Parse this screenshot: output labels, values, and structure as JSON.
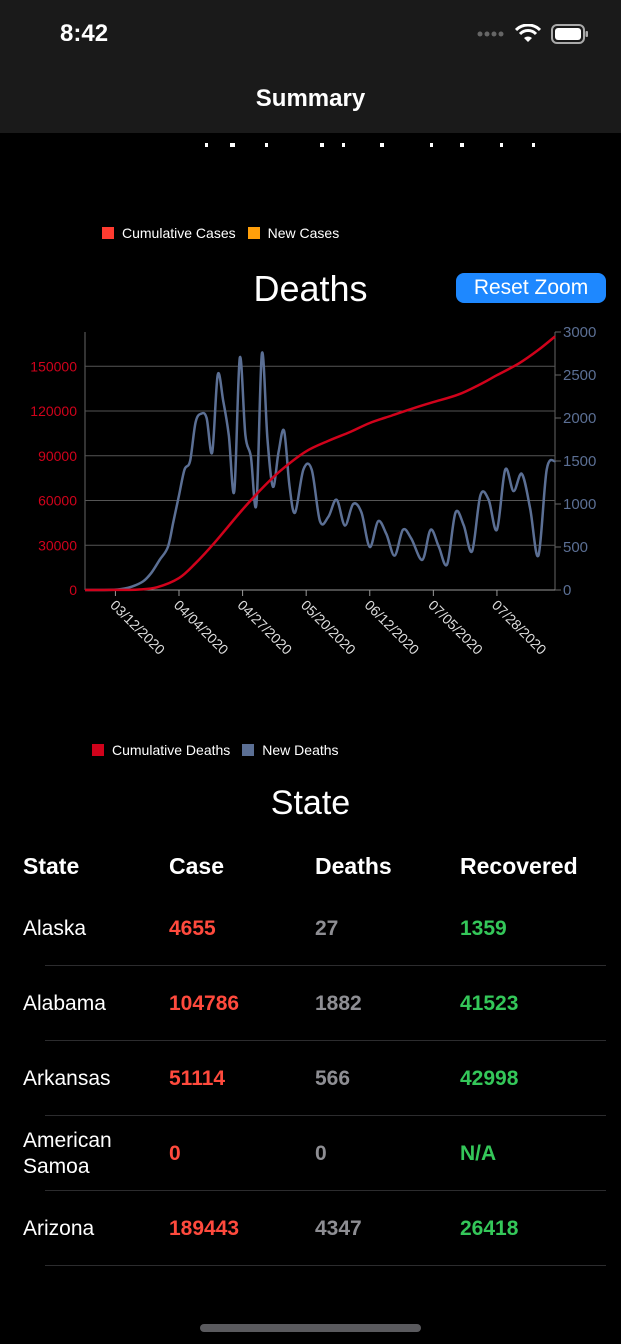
{
  "status_bar": {
    "time": "8:42"
  },
  "nav": {
    "title": "Summary"
  },
  "cases_legend": {
    "items": [
      {
        "label": "Cumulative Cases",
        "color": "#ff3b30"
      },
      {
        "label": "New Cases",
        "color": "#ff9f0a"
      }
    ]
  },
  "deaths_chart": {
    "title": "Deaths",
    "reset_zoom_label": "Reset Zoom",
    "y_left_ticks": [
      "150000",
      "120000",
      "90000",
      "60000",
      "30000",
      "0"
    ],
    "y_right_ticks": [
      "3000",
      "2500",
      "2000",
      "1500",
      "1000",
      "500",
      "0"
    ],
    "x_ticks": [
      "03/12/2020",
      "04/04/2020",
      "04/27/2020",
      "05/20/2020",
      "06/12/2020",
      "07/05/2020",
      "07/28/2020"
    ],
    "legend": [
      {
        "label": "Cumulative Deaths",
        "color": "#d0021b"
      },
      {
        "label": "New Deaths",
        "color": "#5b6f94"
      }
    ]
  },
  "chart_data": {
    "type": "line",
    "title": "Deaths",
    "x_range": [
      "03/01/2020",
      "08/18/2020"
    ],
    "ylim_left": [
      0,
      173000
    ],
    "ylim_right": [
      0,
      3000
    ],
    "grid": true,
    "legend_position": "bottom",
    "series": [
      {
        "name": "Cumulative Deaths",
        "axis": "left",
        "color": "#d0021b",
        "x": [
          "03/01/2020",
          "03/12/2020",
          "03/20/2020",
          "03/27/2020",
          "04/04/2020",
          "04/10/2020",
          "04/17/2020",
          "04/27/2020",
          "05/05/2020",
          "05/12/2020",
          "05/20/2020",
          "05/28/2020",
          "06/05/2020",
          "06/12/2020",
          "06/20/2020",
          "06/28/2020",
          "07/05/2020",
          "07/14/2020",
          "07/22/2020",
          "07/28/2020",
          "08/05/2020",
          "08/12/2020",
          "08/18/2020"
        ],
        "y": [
          0,
          50,
          300,
          1800,
          8000,
          18000,
          32000,
          54000,
          70000,
          82000,
          93000,
          100000,
          106000,
          112000,
          117000,
          122000,
          126000,
          131000,
          138000,
          144000,
          152000,
          161000,
          170000
        ]
      },
      {
        "name": "New Deaths",
        "axis": "right",
        "color": "#5b6f94",
        "x": [
          "03/01/2020",
          "03/08/2020",
          "03/14/2020",
          "03/18/2020",
          "03/22/2020",
          "03/25/2020",
          "03/28/2020",
          "03/31/2020",
          "04/02/2020",
          "04/04/2020",
          "04/06/2020",
          "04/08/2020",
          "04/10/2020",
          "04/12/2020",
          "04/14/2020",
          "04/16/2020",
          "04/18/2020",
          "04/20/2020",
          "04/22/2020",
          "04/24/2020",
          "04/26/2020",
          "04/28/2020",
          "04/30/2020",
          "05/02/2020",
          "05/04/2020",
          "05/06/2020",
          "05/08/2020",
          "05/10/2020",
          "05/12/2020",
          "05/14/2020",
          "05/16/2020",
          "05/19/2020",
          "05/22/2020",
          "05/25/2020",
          "05/28/2020",
          "05/31/2020",
          "06/03/2020",
          "06/06/2020",
          "06/09/2020",
          "06/12/2020",
          "06/15/2020",
          "06/18/2020",
          "06/21/2020",
          "06/24/2020",
          "06/27/2020",
          "07/01/2020",
          "07/04/2020",
          "07/07/2020",
          "07/10/2020",
          "07/13/2020",
          "07/16/2020",
          "07/19/2020",
          "07/22/2020",
          "07/25/2020",
          "07/28/2020",
          "07/31/2020",
          "08/03/2020",
          "08/06/2020",
          "08/09/2020",
          "08/12/2020",
          "08/15/2020",
          "08/18/2020"
        ],
        "y": [
          0,
          0,
          10,
          40,
          100,
          200,
          350,
          500,
          800,
          1100,
          1400,
          1500,
          1950,
          2050,
          2000,
          1600,
          2500,
          2200,
          1800,
          1150,
          2700,
          1800,
          1550,
          1000,
          2750,
          1750,
          1200,
          1600,
          1850,
          1200,
          900,
          1400,
          1400,
          800,
          850,
          1050,
          750,
          1000,
          900,
          500,
          800,
          650,
          400,
          700,
          600,
          350,
          700,
          500,
          300,
          900,
          750,
          450,
          1100,
          1050,
          700,
          1400,
          1150,
          1350,
          950,
          400,
          1400,
          1500
        ]
      }
    ]
  },
  "state_section": {
    "title": "State",
    "headers": {
      "state": "State",
      "case": "Case",
      "deaths": "Deaths",
      "recovered": "Recovered"
    },
    "rows": [
      {
        "state": "Alaska",
        "case": "4655",
        "deaths": "27",
        "recovered": "1359"
      },
      {
        "state": "Alabama",
        "case": "104786",
        "deaths": "1882",
        "recovered": "41523"
      },
      {
        "state": "Arkansas",
        "case": "51114",
        "deaths": "566",
        "recovered": "42998"
      },
      {
        "state": "American Samoa",
        "case": "0",
        "deaths": "0",
        "recovered": "N/A"
      },
      {
        "state": "Arizona",
        "case": "189443",
        "deaths": "4347",
        "recovered": "26418"
      }
    ]
  }
}
